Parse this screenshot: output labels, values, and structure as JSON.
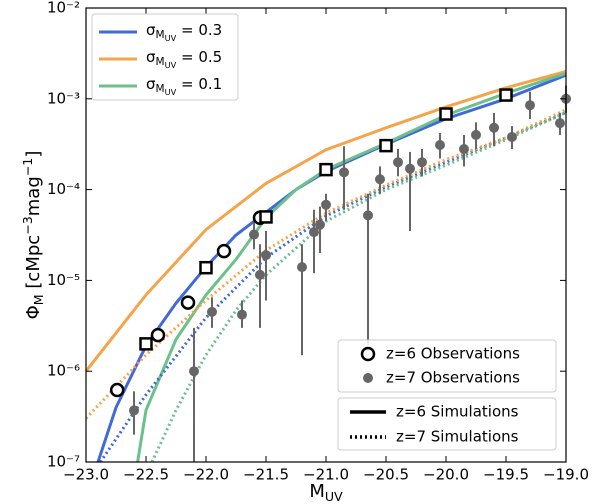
{
  "chart_data": {
    "type": "line",
    "xlabel": [
      {
        "text": "M"
      },
      {
        "text": "UV",
        "shift": "sub"
      }
    ],
    "ylabel": [
      {
        "text": "Φ"
      },
      {
        "text": "M",
        "shift": "sub"
      },
      {
        "text": " [cMpc"
      },
      {
        "text": "−3",
        "shift": "sup"
      },
      {
        "text": "mag"
      },
      {
        "text": "−1",
        "shift": "sup"
      },
      {
        "text": "]"
      }
    ],
    "xlim": [
      -23,
      -19
    ],
    "ylim": [
      1e-07,
      0.01
    ],
    "log_y": true,
    "xticks": [
      {
        "value": -23,
        "label": "−23.0"
      },
      {
        "value": -22.5,
        "label": "−22.5"
      },
      {
        "value": -22,
        "label": "−22.0"
      },
      {
        "value": -21.5,
        "label": "−21.5"
      },
      {
        "value": -21,
        "label": "−21.0"
      },
      {
        "value": -20.5,
        "label": "−20.5"
      },
      {
        "value": -20,
        "label": "−20.0"
      },
      {
        "value": -19.5,
        "label": "−19.5"
      },
      {
        "value": -19,
        "label": "−19.0"
      }
    ],
    "yticks": [
      {
        "value": 1e-07,
        "label": "10⁻⁷"
      },
      {
        "value": 1e-06,
        "label": "10⁻⁶"
      },
      {
        "value": 1e-05,
        "label": "10⁻⁵"
      },
      {
        "value": 0.0001,
        "label": "10⁻⁴"
      },
      {
        "value": 0.001,
        "label": "10⁻³"
      },
      {
        "value": 0.01,
        "label": "10⁻²"
      }
    ],
    "series": [
      {
        "name_parts": [
          {
            "text": "σ"
          },
          {
            "text": "M",
            "shift": "sub"
          },
          {
            "text": "UV",
            "shift": "subsub"
          },
          {
            "text": " = 0.3"
          }
        ],
        "color": "#4169d8",
        "dash": "solid",
        "x": [
          -22.9,
          -22.75,
          -22.5,
          -22.25,
          -22,
          -21.75,
          -21.5,
          -21.25,
          -21,
          -20.5,
          -20,
          -19.5,
          -19
        ],
        "values": [
          1e-07,
          3.98e-07,
          1.91e-06,
          5.62e-06,
          1.41e-05,
          3.16e-05,
          5.62e-05,
          0.0001,
          0.000158,
          0.000316,
          0.000603,
          0.001,
          0.00182
        ]
      },
      {
        "name_parts": [
          {
            "text": "σ"
          },
          {
            "text": "M",
            "shift": "sub"
          },
          {
            "text": "UV",
            "shift": "subsub"
          },
          {
            "text": " = 0.5"
          }
        ],
        "color": "#f5a44a",
        "dash": "solid",
        "x": [
          -23,
          -22.5,
          -22,
          -21.5,
          -21,
          -20.5,
          -20,
          -19.5,
          -19
        ],
        "values": [
          1e-06,
          6.92e-06,
          3.63e-05,
          0.000117,
          0.000275,
          0.000479,
          0.000813,
          0.00132,
          0.002
        ]
      },
      {
        "name_parts": [
          {
            "text": "σ"
          },
          {
            "text": "M",
            "shift": "sub"
          },
          {
            "text": "UV",
            "shift": "subsub"
          },
          {
            "text": " = 0.1"
          }
        ],
        "color": "#6cc08b",
        "dash": "solid",
        "x": [
          -22.57,
          -22.5,
          -22.25,
          -22,
          -21.75,
          -21.5,
          -21.25,
          -21,
          -20.5,
          -20,
          -19.5,
          -19
        ],
        "values": [
          1e-07,
          3.72e-07,
          2.24e-06,
          6.92e-06,
          1.7e-05,
          4.9e-05,
          0.0001,
          0.000166,
          0.000324,
          0.000661,
          0.00115,
          0.00191
        ]
      },
      {
        "color": "#4169d8",
        "dash": "dotted",
        "x": [
          -22.88,
          -22.5,
          -22,
          -21.5,
          -21,
          -20.5,
          -20,
          -19.5,
          -19
        ],
        "values": [
          1e-07,
          5.5e-07,
          3.89e-06,
          1.78e-05,
          5.13e-05,
          0.000107,
          0.0002,
          0.000372,
          0.000708
        ]
      },
      {
        "color": "#f5a44a",
        "dash": "dotted",
        "x": [
          -23,
          -22.5,
          -22,
          -21.5,
          -21,
          -20.5,
          -20,
          -19.5,
          -19
        ],
        "values": [
          3.02e-07,
          1.51e-06,
          6.03e-06,
          2.14e-05,
          5.5e-05,
          0.000112,
          0.000214,
          0.000372,
          0.000759
        ]
      },
      {
        "color": "#6cc08b",
        "dash": "dotted",
        "x": [
          -22.45,
          -22.25,
          -22,
          -21.75,
          -21.5,
          -21,
          -20.5,
          -20,
          -19.5,
          -19
        ],
        "values": [
          1e-07,
          3.72e-07,
          1.51e-06,
          4.68e-06,
          1.15e-05,
          4.47e-05,
          0.0001,
          0.000186,
          0.000355,
          0.000708
        ]
      }
    ],
    "observations": [
      {
        "name": "z=6 Observations",
        "marker": "open-circle",
        "x": [
          -22.74,
          -22.4,
          -22.15,
          -21.85,
          -21.55
        ],
        "values": [
          6.2e-07,
          2.5e-06,
          5.7e-06,
          2.1e-05,
          4.9e-05
        ]
      },
      {
        "marker": "open-square",
        "x": [
          -22.5,
          -22,
          -21.5,
          -21,
          -20.5,
          -20,
          -19.5
        ],
        "values": [
          2e-06,
          1.38e-05,
          5e-05,
          0.000166,
          0.000305,
          0.00068,
          0.0011
        ]
      },
      {
        "name": "z=7 Observations",
        "marker": "gray-circle",
        "x": [
          -22.6,
          -22.1,
          -21.95,
          -21.7,
          -21.6,
          -21.55,
          -21.5,
          -21.2,
          -21.1,
          -21.05,
          -21.0,
          -20.85,
          -20.65,
          -20.55,
          -20.4,
          -20.3,
          -20.2,
          -20.05,
          -19.85,
          -19.75,
          -19.6,
          -19.45,
          -19.3,
          -19.05,
          -19.0
        ],
        "values": [
          3.7e-07,
          1e-06,
          4.5e-06,
          4.2e-06,
          3.2e-05,
          1.15e-05,
          1.9e-05,
          1.4e-05,
          3.4e-05,
          4.1e-05,
          6.8e-05,
          0.000155,
          5.2e-05,
          0.00013,
          0.0002,
          0.00017,
          0.0002,
          0.00031,
          0.00028,
          0.0004,
          0.00048,
          0.00038,
          0.00085,
          0.00054,
          0.001
        ],
        "lower": [
          2e-07,
          1e-07,
          3e-06,
          3e-06,
          2.2e-05,
          3e-06,
          6e-06,
          1.5e-06,
          1.2e-05,
          2e-05,
          4.5e-05,
          6e-05,
          1.95e-06,
          9e-05,
          0.00014,
          3.5e-05,
          0.00014,
          0.00022,
          0.00018,
          0.00028,
          0.0003,
          0.00028,
          0.0006,
          0.0004,
          0.0007
        ],
        "upper": [
          6e-07,
          3e-06,
          6.5e-06,
          6e-06,
          4.5e-05,
          2.5e-05,
          3.5e-05,
          2.5e-05,
          6e-05,
          6.5e-05,
          9e-05,
          0.0003,
          9e-05,
          0.00018,
          0.00028,
          0.00026,
          0.00028,
          0.00042,
          0.0004,
          0.00055,
          0.0007,
          0.0005,
          0.0012,
          0.0007,
          0.0014
        ]
      }
    ],
    "style_legend": [
      {
        "name": "z=6 Simulations",
        "dash": "solid"
      },
      {
        "name": "z=7 Simulations",
        "dash": "dotted"
      }
    ]
  }
}
